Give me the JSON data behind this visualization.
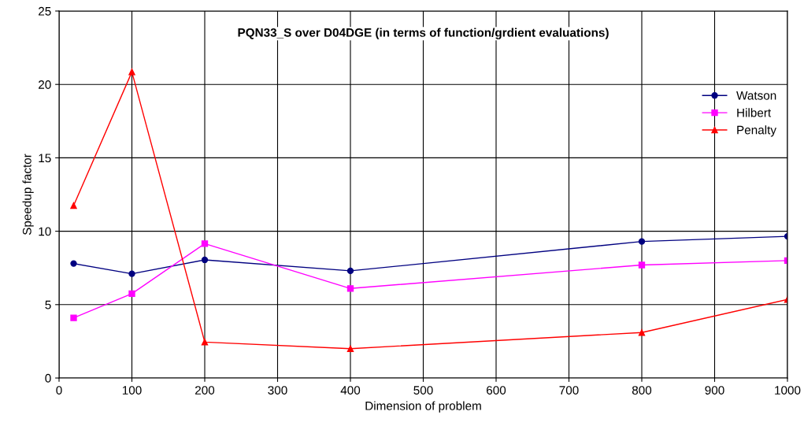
{
  "chart_data": {
    "type": "line",
    "title": "PQN33_S over D04DGE (in terms of function/grdient evaluations)",
    "xlabel": "Dimension of problem",
    "ylabel": "Speedup factor",
    "x": [
      20,
      100,
      200,
      400,
      800,
      1000
    ],
    "series": [
      {
        "name": "Watson",
        "color": "#000080",
        "marker": "circle",
        "values": [
          7.8,
          7.1,
          8.05,
          7.3,
          9.3,
          9.65
        ]
      },
      {
        "name": "Hilbert",
        "color": "#ff00ff",
        "marker": "square",
        "values": [
          4.1,
          5.75,
          9.15,
          6.1,
          7.7,
          8.0
        ]
      },
      {
        "name": "Penalty",
        "color": "#ff0000",
        "marker": "triangle",
        "values": [
          11.75,
          20.85,
          2.45,
          2.0,
          3.1,
          5.35
        ]
      }
    ],
    "xlim": [
      0,
      1000
    ],
    "xticks": [
      0,
      100,
      200,
      300,
      400,
      500,
      600,
      700,
      800,
      900,
      1000
    ],
    "ylim": [
      0,
      25
    ],
    "yticks": [
      0,
      5,
      10,
      15,
      20,
      25
    ],
    "grid": true,
    "legend": "right",
    "line_style": "solid"
  }
}
